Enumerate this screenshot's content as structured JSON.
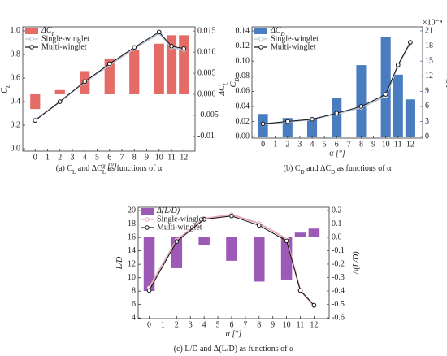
{
  "chart_data": [
    {
      "type": "combo",
      "caption": [
        "(a) ",
        "C",
        {
          "sub": "L"
        },
        " and ΔC",
        {
          "sub": "L"
        },
        " as functions of α"
      ],
      "xlabel": "α [°]",
      "ylabel": [
        "C",
        {
          "sub": "L"
        }
      ],
      "y2label": [
        "ΔC",
        {
          "sub": "L"
        }
      ],
      "x": [
        0,
        2,
        4,
        6,
        8,
        10,
        11,
        12
      ],
      "xlim": [
        -1,
        12.9
      ],
      "xticks": [
        0,
        1,
        2,
        3,
        4,
        5,
        6,
        7,
        8,
        9,
        10,
        11,
        12
      ],
      "ylim": [
        -0.02,
        1.034
      ],
      "yticks": [
        {
          "value": 0,
          "label": "0.0"
        },
        0.2,
        0.4,
        0.6,
        0.8,
        {
          "value": 1,
          "label": "1.0"
        }
      ],
      "y2lim": [
        -0.0135,
        0.016
      ],
      "y2ticks": [
        -0.01,
        -0.005,
        {
          "value": 0,
          "label": "0.000"
        },
        0.005,
        {
          "value": 0.01,
          "label": "0.010"
        },
        0.015
      ],
      "y2color": "#b5482f",
      "legend": "upper left",
      "series": [
        {
          "name": [
            "ΔC",
            {
              "sub": "L"
            }
          ],
          "kind": "bar",
          "axis": "y2",
          "color": "#e56b66",
          "values": [
            -0.0035,
            0.001,
            0.0055,
            0.0085,
            0.0105,
            0.012,
            0.014,
            0.014
          ]
        },
        {
          "name": "Single-winglet",
          "kind": "line",
          "color": "#b8c4d6",
          "values": [
            0.245,
            0.4,
            0.565,
            0.71,
            0.85,
            0.98,
            0.86,
            0.84
          ]
        },
        {
          "name": "Multi-winglet",
          "kind": "line",
          "color": "#111111",
          "values": [
            0.24,
            0.4,
            0.57,
            0.72,
            0.86,
            0.99,
            0.87,
            0.85
          ]
        }
      ]
    },
    {
      "type": "combo",
      "caption": [
        "(b) ",
        "C",
        {
          "sub": "D"
        },
        " and ΔC",
        {
          "sub": "D"
        },
        " as functions of α"
      ],
      "xlabel": "α [°]",
      "ylabel": [
        "C",
        {
          "sub": "D"
        }
      ],
      "y2label": [
        "ΔC",
        {
          "sub": "D"
        }
      ],
      "y2scale": "×10⁻⁴",
      "x": [
        0,
        2,
        4,
        6,
        8,
        10,
        11,
        12
      ],
      "xlim": [
        -0.9,
        13
      ],
      "xticks": [
        0,
        1,
        2,
        3,
        4,
        5,
        6,
        7,
        8,
        9,
        10,
        11,
        12
      ],
      "ylim": [
        -0.002,
        0.1454
      ],
      "yticks": [
        {
          "value": 0,
          "label": "0.00"
        },
        0.02,
        0.04,
        0.06,
        0.08,
        {
          "value": 0.1,
          "label": "0.10"
        },
        0.12,
        0.14
      ],
      "y2lim": [
        -0.3,
        21.8
      ],
      "y2ticks": [
        0,
        3,
        6,
        9,
        12,
        15,
        18,
        21
      ],
      "y2color": "#3d6fb5",
      "legend": "upper left",
      "series": [
        {
          "name": [
            "ΔC",
            {
              "sub": "D"
            }
          ],
          "kind": "bar",
          "axis": "y2",
          "color": "#4a7cc0",
          "values": [
            4.5,
            3.7,
            3.5,
            7.6,
            14.2,
            19.8,
            12.3,
            7.4
          ]
        },
        {
          "name": "Single-winglet",
          "kind": "line",
          "color": "#b8c4d6",
          "values": [
            0.0166,
            0.0196,
            0.0227,
            0.0302,
            0.0386,
            0.054,
            0.0938,
            0.1243
          ]
        },
        {
          "name": "Multi-winglet",
          "kind": "line",
          "color": "#111111",
          "values": [
            0.017,
            0.02,
            0.023,
            0.031,
            0.04,
            0.056,
            0.095,
            0.125
          ]
        }
      ]
    },
    {
      "type": "combo",
      "caption": [
        "(c) L/D and Δ(L/D) as functions of α"
      ],
      "xlabel": "α [°]",
      "ylabel": [
        "L/D"
      ],
      "y2label": [
        "Δ(L/D)"
      ],
      "x": [
        0,
        2,
        4,
        6,
        8,
        10,
        11,
        12
      ],
      "xlim": [
        -0.8,
        13.1
      ],
      "xticks": [
        0,
        1,
        2,
        3,
        4,
        5,
        6,
        7,
        8,
        9,
        10,
        11,
        12
      ],
      "ylim": [
        3.9,
        20.5
      ],
      "yticks": [
        4,
        6,
        8,
        10,
        12,
        14,
        16,
        18,
        20
      ],
      "y2lim": [
        -0.606,
        0.224
      ],
      "y2ticks": [
        -0.6,
        -0.5,
        -0.4,
        -0.3,
        -0.2,
        -0.1,
        {
          "value": 0,
          "label": "0.0"
        },
        0.1,
        0.2
      ],
      "y2color": "#7d3c98",
      "legend": "upper left",
      "series": [
        {
          "name": [
            "Δ(L/D)"
          ],
          "kind": "bar",
          "axis": "y2",
          "color": "#9c59b5",
          "values": [
            -0.4,
            -0.23,
            -0.055,
            -0.175,
            -0.33,
            -0.315,
            0.035,
            0.065
          ]
        },
        {
          "name": "Single-winglet",
          "kind": "line",
          "color": "#e3a9b8",
          "values": [
            8.5,
            15.6,
            18.8,
            19.4,
            18.1,
            15.8,
            8.1,
            5.8
          ]
        },
        {
          "name": "Multi-winglet",
          "kind": "line",
          "color": "#111111",
          "values": [
            8.1,
            15.4,
            18.7,
            19.2,
            17.8,
            15.5,
            8.1,
            5.9
          ]
        }
      ]
    }
  ]
}
